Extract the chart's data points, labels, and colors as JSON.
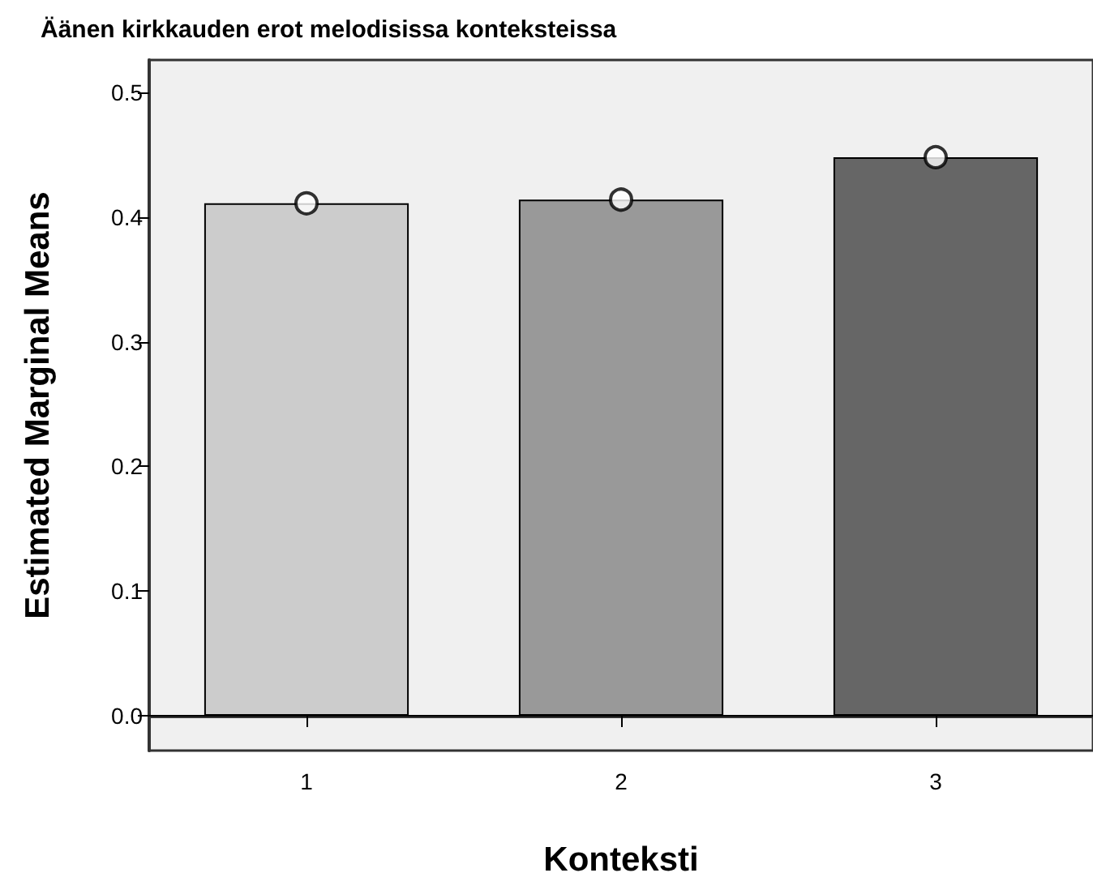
{
  "chart_data": {
    "type": "bar",
    "title": "Äänen kirkkauden erot melodisissa konteksteissa",
    "xlabel": "Konteksti",
    "ylabel": "Estimated Marginal Means",
    "categories": [
      "1",
      "2",
      "3"
    ],
    "series": [
      {
        "colors": [
          "#cccccc",
          "#999999",
          "#666666"
        ],
        "values": [
          0.411,
          0.414,
          0.448
        ]
      },
      {
        "type": "scatter",
        "color": "#000000",
        "x": [
          "1",
          "2",
          "3"
        ],
        "values": [
          0.411,
          0.414,
          0.448
        ],
        "marker": "circle"
      }
    ],
    "ylim": [
      -0.028,
      0.526
    ],
    "yticks": [
      {
        "value": 0,
        "label": "0.0"
      },
      {
        "value": 0.1,
        "label": "0.1"
      },
      {
        "value": 0.2,
        "label": "0.2"
      },
      {
        "value": 0.3,
        "label": "0.3"
      },
      {
        "value": 0.4,
        "label": "0.4"
      },
      {
        "value": 0.5,
        "label": "0.5"
      }
    ],
    "ref_lines": [
      {
        "axis": "y",
        "value": 0,
        "color": "#000000"
      }
    ],
    "grid": false
  }
}
